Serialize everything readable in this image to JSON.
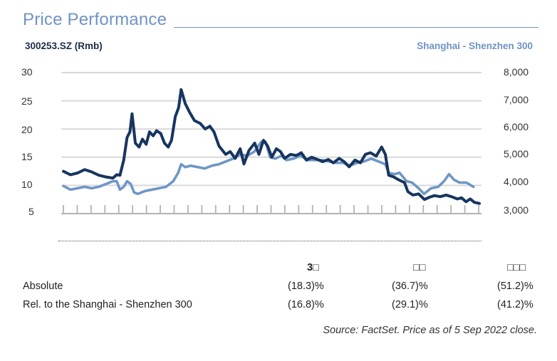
{
  "header": {
    "title": "Price Performance",
    "ticker_label": "300253.SZ (Rmb)",
    "index_label": "Shanghai - Shenzhen 300"
  },
  "chart_data": {
    "type": "line",
    "title": "Price Performance",
    "xlabel": "",
    "ylabel_left": "300253.SZ (Rmb)",
    "ylabel_right": "Shanghai - Shenzhen 300",
    "ylim_left": [
      5,
      30
    ],
    "ylim_right": [
      3000,
      8000
    ],
    "yticks_left": [
      "30",
      "25",
      "20",
      "15",
      "10",
      "5"
    ],
    "yticks_right": [
      "8,000",
      "7,000",
      "6,000",
      "5,000",
      "4,000",
      "3,000"
    ],
    "grid": true,
    "x_tick_count": 31,
    "x_tick_labels": [],
    "legend": "none",
    "series": [
      {
        "name": "300253.SZ (Rmb)",
        "axis": "left",
        "color": "#17355f",
        "x": [
          0,
          1.7,
          3.4,
          5.1,
          6.8,
          8.5,
          10.2,
          11.9,
          12.8,
          13.6,
          14.5,
          15.3,
          16.0,
          16.5,
          17.3,
          18.2,
          19.0,
          19.9,
          20.7,
          21.6,
          22.4,
          23.4,
          24.3,
          25.2,
          26.0,
          26.9,
          27.7,
          28.3,
          29.3,
          30.3,
          31.5,
          32.9,
          34.1,
          35.2,
          36.2,
          37.4,
          39.0,
          40.1,
          41.3,
          42.5,
          43.4,
          44.6,
          46.0,
          47.0,
          48.1,
          49.1,
          50.1,
          51.2,
          52.2,
          53.2,
          54.6,
          56.0,
          57.2,
          58.4,
          59.7,
          61.1,
          62.3,
          63.7,
          64.9,
          66.3,
          67.5,
          68.7,
          70.1,
          71.4,
          72.6,
          73.8,
          75.2,
          76.5,
          77.4,
          78.2,
          79.4,
          80.6,
          82.0,
          82.8,
          84.0,
          85.4,
          86.8,
          88.0,
          89.2,
          90.6,
          92.0,
          93.3,
          94.7,
          95.7,
          96.8,
          97.8,
          98.8,
          100
        ],
        "values": [
          12.5,
          11.9,
          12.2,
          12.8,
          12.4,
          11.8,
          11.5,
          11.3,
          11.9,
          11.8,
          14.5,
          18.5,
          19.5,
          22.7,
          17.5,
          16.8,
          18.2,
          17.3,
          19.5,
          18.8,
          19.7,
          19.2,
          17.5,
          16.8,
          18.0,
          22.2,
          23.8,
          27.0,
          24.5,
          23.0,
          21.5,
          21.0,
          20.0,
          20.5,
          19.5,
          17.0,
          15.5,
          16.0,
          14.8,
          16.5,
          13.8,
          16.2,
          17.5,
          15.5,
          18.0,
          17.0,
          15.0,
          16.5,
          16.0,
          14.8,
          15.5,
          15.3,
          15.8,
          14.5,
          15.0,
          14.6,
          14.2,
          14.6,
          14.0,
          14.8,
          14.2,
          13.3,
          14.5,
          14.0,
          15.5,
          15.8,
          15.2,
          16.8,
          15.5,
          11.8,
          11.5,
          11.0,
          10.5,
          8.9,
          8.3,
          8.5,
          7.5,
          7.9,
          8.2,
          8.0,
          8.3,
          8.0,
          7.6,
          7.8,
          7.1,
          7.6,
          7.0,
          6.8
        ]
      },
      {
        "name": "Shanghai - Shenzhen 300",
        "axis": "right",
        "color": "#6f96c6",
        "x": [
          0,
          1.7,
          3.4,
          5.1,
          6.8,
          8.5,
          10.2,
          11.9,
          12.8,
          13.6,
          14.5,
          15.3,
          16.2,
          17.0,
          17.9,
          19.6,
          21.3,
          23.0,
          24.7,
          26.4,
          27.6,
          28.3,
          29.3,
          30.6,
          32.3,
          34.0,
          35.7,
          37.4,
          39.1,
          40.8,
          42.5,
          44.2,
          45.9,
          47.6,
          48.6,
          49.7,
          51.0,
          52.4,
          53.6,
          55.3,
          57.0,
          58.7,
          60.4,
          62.1,
          63.8,
          65.5,
          67.2,
          68.9,
          70.6,
          72.3,
          74.0,
          75.7,
          77.4,
          78.2,
          79.6,
          80.8,
          82.5,
          83.8,
          85.4,
          86.7,
          88.4,
          90.1,
          91.5,
          92.7,
          93.9,
          95.2,
          96.9,
          98.6
        ],
        "values": [
          3980,
          3850,
          3900,
          3950,
          3900,
          3950,
          4050,
          4150,
          4150,
          3850,
          3950,
          4150,
          4050,
          3750,
          3700,
          3800,
          3850,
          3900,
          3950,
          4150,
          4450,
          4750,
          4650,
          4700,
          4650,
          4600,
          4700,
          4750,
          4850,
          4950,
          5100,
          5050,
          5200,
          5550,
          5550,
          5000,
          4950,
          5050,
          4900,
          4950,
          5050,
          4900,
          4900,
          4900,
          4850,
          4800,
          4800,
          4700,
          4800,
          4850,
          4950,
          4850,
          4750,
          4450,
          4400,
          4450,
          4150,
          4100,
          3900,
          3700,
          3900,
          3950,
          4150,
          4400,
          4200,
          4100,
          4100,
          3950
        ]
      }
    ]
  },
  "performance_table": {
    "columns": [
      "3□",
      "□□",
      "□□□"
    ],
    "rows": [
      {
        "label": "Absolute",
        "values": [
          "(18.3)%",
          "(36.7)%",
          "(51.2)%"
        ]
      },
      {
        "label": "Rel. to the Shanghai - Shenzhen 300",
        "values": [
          "(16.8)%",
          "(29.1)%",
          "(41.2)%"
        ]
      }
    ]
  },
  "footer": {
    "source": "Source: FactSet. Price as of 5 Sep 2022 close."
  }
}
